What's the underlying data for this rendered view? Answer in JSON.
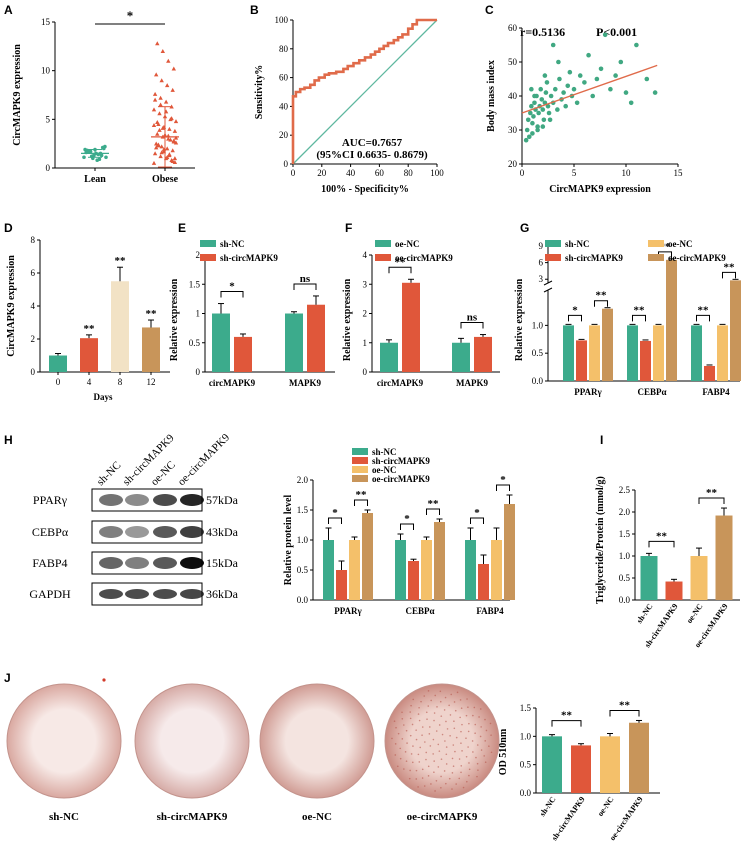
{
  "colors": {
    "teal": "#3cab8c",
    "red": "#e0573a",
    "yellow": "#f4c06a",
    "brown": "#c8955a",
    "diag": "#5fb8a0",
    "roc": "#e06b4a",
    "scatter": "#40a882",
    "fit": "#e06b4a"
  },
  "panels": {
    "A": "A",
    "B": "B",
    "C": "C",
    "D": "D",
    "E": "E",
    "F": "F",
    "G": "G",
    "H": "H",
    "I": "I",
    "J": "J"
  },
  "chart_data": [
    {
      "id": "A",
      "type": "scatter",
      "ylabel": "CircMAPK9 expression",
      "categories": [
        "Lean",
        "Obese"
      ],
      "ylim": [
        0,
        15
      ],
      "yticks": [
        0,
        5,
        10,
        15
      ],
      "significance": "*",
      "lean_points": [
        1.1,
        1.3,
        1.5,
        1.7,
        1.9,
        2.1,
        0.8,
        1.2,
        1.6,
        2.0,
        1.4,
        1.0,
        1.8,
        2.2,
        0.9,
        1.3,
        1.7,
        1.1,
        1.5,
        1.9
      ],
      "obese_points": [
        0.5,
        0.8,
        1.0,
        1.2,
        1.5,
        1.8,
        2.0,
        2.2,
        2.5,
        2.8,
        3.0,
        3.2,
        3.5,
        3.8,
        4.0,
        4.2,
        4.5,
        4.8,
        5.0,
        5.3,
        5.6,
        6.0,
        6.3,
        6.8,
        7.2,
        7.6,
        8.0,
        8.5,
        9.0,
        9.6,
        10.2,
        11.0,
        12.0,
        12.8,
        1.0,
        1.4,
        1.7,
        2.3,
        2.6,
        2.9,
        3.4,
        3.9,
        4.4,
        5.1,
        5.8,
        6.5,
        7.0,
        0.7,
        1.1,
        1.6,
        2.1,
        2.7,
        3.3,
        4.1,
        4.7,
        0.6,
        1.3,
        1.9,
        2.4,
        3.1
      ],
      "lean_mean": 1.5,
      "lean_sd": 0.4,
      "obese_mean": 3.2,
      "obese_sd": 3.1
    },
    {
      "id": "B",
      "type": "line",
      "xlabel": "100% - Specificity%",
      "ylabel": "Sensitivity%",
      "xlim": [
        0,
        100
      ],
      "ylim": [
        0,
        100
      ],
      "xticks": [
        0,
        20,
        40,
        60,
        80,
        100
      ],
      "yticks": [
        0,
        20,
        40,
        60,
        80,
        100
      ],
      "auc_text": "AUC=0.7657",
      "ci_text": "(95%CI 0.6635- 0.8679)",
      "roc": [
        [
          0,
          0
        ],
        [
          0,
          47
        ],
        [
          2,
          47
        ],
        [
          2,
          50
        ],
        [
          5,
          50
        ],
        [
          5,
          52
        ],
        [
          8,
          52
        ],
        [
          8,
          53
        ],
        [
          12,
          53
        ],
        [
          12,
          55
        ],
        [
          15,
          55
        ],
        [
          15,
          58
        ],
        [
          18,
          58
        ],
        [
          18,
          60
        ],
        [
          22,
          60
        ],
        [
          22,
          62
        ],
        [
          25,
          62
        ],
        [
          25,
          63
        ],
        [
          30,
          63
        ],
        [
          30,
          64
        ],
        [
          35,
          64
        ],
        [
          35,
          66
        ],
        [
          38,
          66
        ],
        [
          38,
          68
        ],
        [
          42,
          68
        ],
        [
          42,
          70
        ],
        [
          46,
          70
        ],
        [
          46,
          72
        ],
        [
          50,
          72
        ],
        [
          50,
          74
        ],
        [
          54,
          74
        ],
        [
          54,
          76
        ],
        [
          57,
          76
        ],
        [
          57,
          78
        ],
        [
          60,
          78
        ],
        [
          60,
          80
        ],
        [
          63,
          80
        ],
        [
          63,
          82
        ],
        [
          66,
          82
        ],
        [
          66,
          84
        ],
        [
          70,
          84
        ],
        [
          70,
          86
        ],
        [
          73,
          86
        ],
        [
          73,
          88
        ],
        [
          76,
          88
        ],
        [
          76,
          90
        ],
        [
          80,
          90
        ],
        [
          80,
          94
        ],
        [
          83,
          94
        ],
        [
          83,
          97
        ],
        [
          86,
          97
        ],
        [
          86,
          100
        ],
        [
          100,
          100
        ]
      ]
    },
    {
      "id": "C",
      "type": "scatter",
      "xlabel": "CircMAPK9 expression",
      "ylabel": "Body mass index",
      "xlim": [
        0,
        15
      ],
      "ylim": [
        20,
        60
      ],
      "xticks": [
        0,
        5,
        10,
        15
      ],
      "yticks": [
        20,
        30,
        40,
        50,
        60
      ],
      "r_text": "r=0.5136",
      "p_text": "P<0.001",
      "points": [
        [
          0.5,
          30
        ],
        [
          0.6,
          33
        ],
        [
          0.8,
          35
        ],
        [
          0.9,
          37
        ],
        [
          1.0,
          32
        ],
        [
          1.1,
          34
        ],
        [
          1.2,
          38
        ],
        [
          1.3,
          36
        ],
        [
          1.4,
          40
        ],
        [
          1.5,
          31
        ],
        [
          1.6,
          35
        ],
        [
          1.7,
          37
        ],
        [
          1.8,
          42
        ],
        [
          1.9,
          39
        ],
        [
          2.0,
          36
        ],
        [
          2.1,
          33
        ],
        [
          2.2,
          38
        ],
        [
          2.3,
          41
        ],
        [
          2.4,
          44
        ],
        [
          2.5,
          37
        ],
        [
          2.6,
          35
        ],
        [
          2.8,
          40
        ],
        [
          3.0,
          38
        ],
        [
          3.2,
          42
        ],
        [
          3.4,
          36
        ],
        [
          3.6,
          45
        ],
        [
          3.8,
          39
        ],
        [
          4.0,
          41
        ],
        [
          4.2,
          37
        ],
        [
          4.4,
          43
        ],
        [
          4.6,
          47
        ],
        [
          4.8,
          40
        ],
        [
          5.0,
          42
        ],
        [
          5.3,
          38
        ],
        [
          5.6,
          46
        ],
        [
          6.0,
          44
        ],
        [
          6.4,
          52
        ],
        [
          6.8,
          40
        ],
        [
          7.2,
          45
        ],
        [
          7.6,
          48
        ],
        [
          8.0,
          58
        ],
        [
          8.5,
          42
        ],
        [
          9.0,
          46
        ],
        [
          9.5,
          50
        ],
        [
          10.0,
          41
        ],
        [
          10.5,
          38
        ],
        [
          11.0,
          55
        ],
        [
          12.0,
          45
        ],
        [
          12.8,
          41
        ],
        [
          0.7,
          28
        ],
        [
          1.0,
          29
        ],
        [
          1.5,
          30
        ],
        [
          2.0,
          31
        ],
        [
          0.4,
          27
        ],
        [
          3.0,
          55
        ],
        [
          2.7,
          33
        ],
        [
          1.2,
          40
        ],
        [
          0.9,
          42
        ],
        [
          2.2,
          46
        ],
        [
          3.5,
          50
        ]
      ],
      "fit": [
        [
          0,
          35
        ],
        [
          13,
          49
        ]
      ]
    },
    {
      "id": "D",
      "type": "bar",
      "xlabel": "Days",
      "ylabel": "CircMAPK9 expression",
      "ylim": [
        0,
        8
      ],
      "yticks": [
        0,
        2,
        4,
        6,
        8
      ],
      "categories": [
        "0",
        "4",
        "8",
        "12"
      ],
      "values": [
        1.0,
        2.05,
        5.5,
        2.7
      ],
      "errors": [
        0.12,
        0.2,
        0.85,
        0.45
      ],
      "sig": [
        "",
        "**",
        "**",
        "**"
      ]
    },
    {
      "id": "E",
      "type": "bar",
      "ylabel": "Relative expression",
      "ylim": [
        0,
        2.0
      ],
      "yticks": [
        0,
        0.5,
        1.0,
        1.5,
        2.0
      ],
      "categories": [
        "circMAPK9",
        "MAPK9"
      ],
      "series": [
        {
          "name": "sh-NC",
          "values": [
            1.0,
            1.0
          ],
          "errors": [
            0.17,
            0.03
          ]
        },
        {
          "name": "sh-circMAPK9",
          "values": [
            0.6,
            1.15
          ],
          "errors": [
            0.05,
            0.15
          ]
        }
      ],
      "sig": [
        "*",
        "ns"
      ]
    },
    {
      "id": "F",
      "type": "bar",
      "ylabel": "Relative expression",
      "ylim": [
        0,
        4
      ],
      "yticks": [
        0,
        1,
        2,
        3,
        4
      ],
      "categories": [
        "circMAPK9",
        "MAPK9"
      ],
      "series": [
        {
          "name": "oe-NC",
          "values": [
            1.0,
            1.0
          ],
          "errors": [
            0.1,
            0.15
          ]
        },
        {
          "name": "oe-circMAPK9",
          "values": [
            3.05,
            1.2
          ],
          "errors": [
            0.12,
            0.08
          ]
        }
      ],
      "sig": [
        "**",
        "ns"
      ]
    },
    {
      "id": "G",
      "type": "bar",
      "ylabel": "Relative expression",
      "yticks_lower": [
        "0.0",
        "0.5",
        "1.0"
      ],
      "yticks_upper": [
        "3",
        "6",
        "9"
      ],
      "categories": [
        "PPARγ",
        "CEBPα",
        "FABP4"
      ],
      "series": [
        {
          "name": "sh-NC",
          "values": [
            1.0,
            1.0,
            1.0
          ]
        },
        {
          "name": "sh-circMAPK9",
          "values": [
            0.73,
            0.72,
            0.27
          ]
        },
        {
          "name": "oe-NC",
          "values": [
            1.0,
            1.0,
            1.0
          ]
        },
        {
          "name": "oe-circMAPK9",
          "values": [
            1.3,
            6.5,
            2.8
          ]
        }
      ],
      "sig": [
        "*",
        "**",
        "**",
        "**",
        "**",
        "**"
      ]
    },
    {
      "id": "Hbar",
      "type": "bar",
      "ylabel": "Relative protein level",
      "ylim": [
        0,
        2.0
      ],
      "yticks": [
        "0.0",
        "0.5",
        "1.0",
        "1.5",
        "2.0"
      ],
      "categories": [
        "PPARγ",
        "CEBPα",
        "FABP4"
      ],
      "series": [
        {
          "name": "sh-NC",
          "values": [
            1.0,
            1.0,
            1.0
          ],
          "errors": [
            0.2,
            0.1,
            0.2
          ]
        },
        {
          "name": "sh-circMAPK9",
          "values": [
            0.5,
            0.65,
            0.6
          ],
          "errors": [
            0.15,
            0.03,
            0.15
          ]
        },
        {
          "name": "oe-NC",
          "values": [
            1.0,
            1.0,
            1.0
          ],
          "errors": [
            0.05,
            0.05,
            0.2
          ]
        },
        {
          "name": "oe-circMAPK9",
          "values": [
            1.45,
            1.3,
            1.6
          ],
          "errors": [
            0.05,
            0.05,
            0.15
          ]
        }
      ],
      "sig": [
        "*",
        "**",
        "*",
        "**",
        "*",
        "*"
      ]
    },
    {
      "id": "I",
      "type": "bar",
      "ylabel": "Triglyceride/Protein (mmol/g)",
      "ylim": [
        0,
        2.5
      ],
      "yticks": [
        "0.0",
        "0.5",
        "1.0",
        "1.5",
        "2.0",
        "2.5"
      ],
      "categories": [
        "sh-NC",
        "sh-circMAPK9",
        "oe-NC",
        "oe-circMAPK9"
      ],
      "values": [
        1.0,
        0.42,
        1.0,
        1.92
      ],
      "errors": [
        0.06,
        0.05,
        0.18,
        0.17
      ],
      "sig": [
        "**",
        "**"
      ]
    },
    {
      "id": "J",
      "type": "bar",
      "ylabel": "OD 510nm",
      "ylim": [
        0,
        1.5
      ],
      "yticks": [
        "0.0",
        "0.5",
        "1.0",
        "1.5"
      ],
      "categories": [
        "sh-NC",
        "sh-circMAPK9",
        "oe-NC",
        "oe-circMAPK9"
      ],
      "values": [
        1.0,
        0.84,
        1.0,
        1.24
      ],
      "errors": [
        0.03,
        0.03,
        0.05,
        0.04
      ],
      "sig": [
        "**",
        "**"
      ]
    }
  ],
  "western": {
    "lanes": [
      "sh-NC",
      "sh-circMAPK9",
      "oe-NC",
      "oe-circMAPK9"
    ],
    "bands": [
      {
        "name": "PPARγ",
        "kda": "57kDa"
      },
      {
        "name": "CEBPα",
        "kda": "43kDa"
      },
      {
        "name": "FABP4",
        "kda": "15kDa"
      },
      {
        "name": "GAPDH",
        "kda": "36kDa"
      }
    ]
  },
  "dishes": {
    "labels": [
      "sh-NC",
      "sh-circMAPK9",
      "oe-NC",
      "oe-circMAPK9"
    ]
  },
  "legends": {
    "E": [
      "sh-NC",
      "sh-circMAPK9"
    ],
    "F": [
      "oe-NC",
      "oe-circMAPK9"
    ],
    "G": [
      "sh-NC",
      "oe-NC",
      "sh-circMAPK9",
      "oe-circMAPK9"
    ],
    "H": [
      "sh-NC",
      "sh-circMAPK9",
      "oe-NC",
      "oe-circMAPK9"
    ]
  }
}
